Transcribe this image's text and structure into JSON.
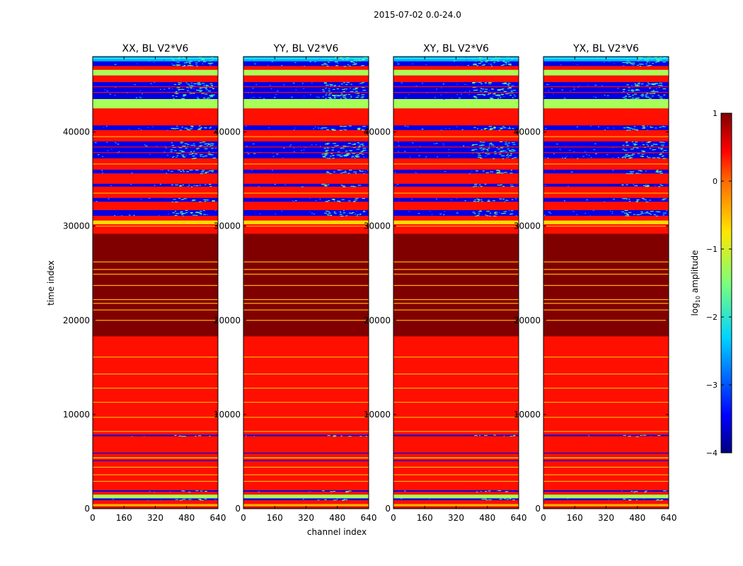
{
  "suptitle": "2015-07-02 0.0-24.0",
  "colors": {
    "deep_red": "#7f0000",
    "orange": "#ff6600",
    "light_green": "#9cff5a",
    "blue": "#0a14f0",
    "cyan": "#3cf0d0",
    "yellow_green": "#d4ff2a",
    "light_blue": "#4aa0ff"
  },
  "chart_data": {
    "type": "heatmap",
    "colormap": "jet",
    "xlabel": "channel index",
    "ylabel": "time index",
    "xlim": [
      0,
      640
    ],
    "ylim": [
      0,
      48000
    ],
    "xticks": [
      "0",
      "160",
      "320",
      "480",
      "640"
    ],
    "xtick_values": [
      0,
      160,
      320,
      480,
      640
    ],
    "yticks": [
      "0",
      "10000",
      "20000",
      "30000",
      "40000"
    ],
    "ytick_values": [
      0,
      10000,
      20000,
      30000,
      40000
    ],
    "colorbar": {
      "label": "log10 amplitude",
      "label_main": "log",
      "label_sub": "10",
      "label_tail": " amplitude",
      "range": [
        -4,
        1
      ],
      "ticks": [
        "1",
        "0",
        "−1",
        "−2",
        "−3",
        "−4"
      ],
      "tick_values": [
        1,
        0,
        -1,
        -2,
        -3,
        -4
      ]
    },
    "panels": [
      {
        "title": "XX, BL V2*V6"
      },
      {
        "title": "YY, BL V2*V6"
      },
      {
        "title": "XY, BL V2*V6"
      },
      {
        "title": "YX, BL V2*V6"
      }
    ],
    "bands": [
      {
        "y0": 0,
        "y1": 250,
        "value": 0.6
      },
      {
        "y0": 250,
        "y1": 500,
        "value": -0.5
      },
      {
        "y0": 500,
        "y1": 900,
        "value": 0.3
      },
      {
        "y0": 900,
        "y1": 1100,
        "value": -3.5
      },
      {
        "y0": 1100,
        "y1": 1500,
        "value": -1.3
      },
      {
        "y0": 1500,
        "y1": 1800,
        "value": 0.3
      },
      {
        "y0": 1800,
        "y1": 1950,
        "value": -3.5
      },
      {
        "y0": 1950,
        "y1": 7700,
        "value": 0.3
      },
      {
        "y0": 7700,
        "y1": 7850,
        "value": -3.5
      },
      {
        "y0": 7850,
        "y1": 18300,
        "value": 0.3
      },
      {
        "y0": 18300,
        "y1": 29200,
        "value": 1.0
      },
      {
        "y0": 29200,
        "y1": 30200,
        "value": 0.3
      },
      {
        "y0": 30200,
        "y1": 30600,
        "value": -0.7
      },
      {
        "y0": 30600,
        "y1": 31100,
        "value": 0.3
      },
      {
        "y0": 31100,
        "y1": 31700,
        "value": -3.5
      },
      {
        "y0": 31700,
        "y1": 32600,
        "value": 0.3
      },
      {
        "y0": 32600,
        "y1": 33000,
        "value": -3.5
      },
      {
        "y0": 33000,
        "y1": 34200,
        "value": 0.3
      },
      {
        "y0": 34200,
        "y1": 34500,
        "value": -3.5
      },
      {
        "y0": 34500,
        "y1": 35600,
        "value": 0.3
      },
      {
        "y0": 35600,
        "y1": 36000,
        "value": -3.5
      },
      {
        "y0": 36000,
        "y1": 37200,
        "value": 0.3
      },
      {
        "y0": 37200,
        "y1": 39000,
        "value": -3.5
      },
      {
        "y0": 39000,
        "y1": 40200,
        "value": 0.3
      },
      {
        "y0": 40200,
        "y1": 40700,
        "value": -3.5
      },
      {
        "y0": 40700,
        "y1": 42500,
        "value": 0.3
      },
      {
        "y0": 42500,
        "y1": 43500,
        "value": -1.3
      },
      {
        "y0": 43500,
        "y1": 45300,
        "value": -3.5
      },
      {
        "y0": 45300,
        "y1": 46000,
        "value": 0.3
      },
      {
        "y0": 46000,
        "y1": 46600,
        "value": -1.3
      },
      {
        "y0": 46600,
        "y1": 47000,
        "value": 0.3
      },
      {
        "y0": 47000,
        "y1": 47500,
        "value": -3.5
      },
      {
        "y0": 47500,
        "y1": 48000,
        "value": -2.5
      }
    ],
    "thin_lines": [
      {
        "y": 2900,
        "value": -0.5
      },
      {
        "y": 3600,
        "value": -0.5
      },
      {
        "y": 4400,
        "value": -0.5
      },
      {
        "y": 5100,
        "value": -3.5
      },
      {
        "y": 5400,
        "value": -1.3
      },
      {
        "y": 5900,
        "value": -3.5
      },
      {
        "y": 8200,
        "value": -0.5
      },
      {
        "y": 9700,
        "value": -0.5
      },
      {
        "y": 11300,
        "value": -0.5
      },
      {
        "y": 12800,
        "value": -0.5
      },
      {
        "y": 14300,
        "value": -0.5
      },
      {
        "y": 16100,
        "value": -0.5
      },
      {
        "y": 20000,
        "value": -0.5
      },
      {
        "y": 21100,
        "value": -0.5
      },
      {
        "y": 21800,
        "value": -0.5
      },
      {
        "y": 22200,
        "value": -0.5
      },
      {
        "y": 23700,
        "value": -0.5
      },
      {
        "y": 24900,
        "value": -0.5
      },
      {
        "y": 25400,
        "value": -0.5
      },
      {
        "y": 26200,
        "value": -0.5
      },
      {
        "y": 30000,
        "value": -0.5
      },
      {
        "y": 33500,
        "value": -0.5
      },
      {
        "y": 36600,
        "value": -0.5
      },
      {
        "y": 37800,
        "value": 0.3
      },
      {
        "y": 38400,
        "value": 0.3
      },
      {
        "y": 39500,
        "value": -0.5
      },
      {
        "y": 44200,
        "value": 0.3
      },
      {
        "y": 44800,
        "value": 0.3
      },
      {
        "y": 47800,
        "value": -2.0
      }
    ]
  }
}
